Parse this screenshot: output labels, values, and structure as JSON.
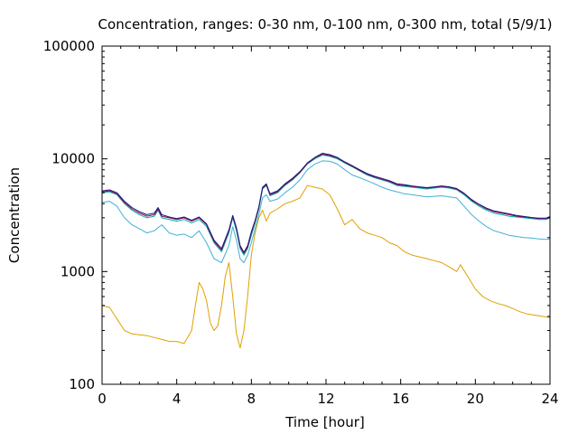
{
  "chart_data": {
    "type": "line",
    "title": "Concentration, ranges: 0-30 nm, 0-100 nm, 0-300 nm, total (5/9/1)",
    "xlabel": "Time [hour]",
    "ylabel": "Concentration",
    "xlim": [
      0,
      24
    ],
    "ylim": [
      100,
      100000
    ],
    "yscale": "log",
    "x_ticks": [
      0,
      4,
      8,
      12,
      16,
      20,
      24
    ],
    "y_ticks": [
      100,
      1000,
      10000,
      100000
    ],
    "grid": false,
    "legend": "none",
    "series": [
      {
        "color": "#e0a000",
        "x": [
          0,
          0.4,
          0.8,
          1.2,
          1.6,
          2.0,
          2.4,
          2.8,
          3.2,
          3.6,
          4.0,
          4.4,
          4.8,
          5.0,
          5.2,
          5.4,
          5.6,
          5.8,
          6.0,
          6.2,
          6.4,
          6.6,
          6.8,
          7.0,
          7.2,
          7.4,
          7.6,
          7.8,
          8.0,
          8.2,
          8.4,
          8.6,
          8.8,
          9.0,
          9.4,
          9.8,
          10.2,
          10.6,
          11.0,
          11.4,
          11.8,
          12.2,
          12.6,
          13.0,
          13.4,
          13.8,
          14.2,
          14.6,
          15.0,
          15.4,
          15.8,
          16.2,
          16.6,
          17.0,
          17.4,
          17.8,
          18.2,
          18.6,
          19.0,
          19.2,
          19.6,
          20.0,
          20.4,
          20.8,
          21.2,
          21.6,
          22.0,
          22.4,
          22.8,
          23.2,
          23.6,
          24.0
        ],
        "y": [
          500,
          480,
          380,
          300,
          280,
          275,
          270,
          260,
          250,
          240,
          240,
          230,
          300,
          500,
          800,
          700,
          550,
          350,
          300,
          330,
          500,
          900,
          1200,
          600,
          280,
          210,
          300,
          600,
          1400,
          2200,
          3000,
          3500,
          2800,
          3300,
          3600,
          4000,
          4200,
          4500,
          5800,
          5600,
          5400,
          4800,
          3600,
          2600,
          2900,
          2400,
          2200,
          2100,
          2000,
          1800,
          1700,
          1500,
          1400,
          1350,
          1300,
          1250,
          1200,
          1100,
          1000,
          1150,
          900,
          700,
          600,
          550,
          520,
          500,
          470,
          440,
          420,
          410,
          400,
          390
        ]
      },
      {
        "color": "#40b0d8",
        "x": [
          0,
          0.4,
          0.8,
          1.2,
          1.6,
          2.0,
          2.4,
          2.8,
          3.2,
          3.6,
          4.0,
          4.4,
          4.8,
          5.2,
          5.6,
          6.0,
          6.4,
          6.8,
          7.0,
          7.2,
          7.4,
          7.6,
          7.8,
          8.0,
          8.2,
          8.4,
          8.6,
          8.8,
          9.0,
          9.4,
          9.8,
          10.2,
          10.6,
          11.0,
          11.4,
          11.8,
          12.2,
          12.6,
          13.0,
          13.4,
          13.8,
          14.2,
          14.6,
          15.0,
          15.4,
          15.8,
          16.2,
          16.6,
          17.0,
          17.4,
          17.8,
          18.2,
          18.6,
          19.0,
          19.4,
          19.8,
          20.2,
          20.6,
          21.0,
          21.4,
          21.8,
          22.2,
          22.6,
          23.0,
          23.4,
          23.8,
          24.0
        ],
        "y": [
          4100,
          4200,
          3800,
          3000,
          2600,
          2400,
          2200,
          2300,
          2600,
          2200,
          2100,
          2150,
          2000,
          2300,
          1800,
          1300,
          1200,
          1700,
          2500,
          1900,
          1300,
          1200,
          1400,
          1800,
          2400,
          3200,
          4500,
          4800,
          4200,
          4400,
          5000,
          5600,
          6500,
          8000,
          9000,
          9600,
          9500,
          9000,
          8000,
          7200,
          6800,
          6400,
          6000,
          5600,
          5300,
          5100,
          4900,
          4800,
          4700,
          4600,
          4650,
          4700,
          4600,
          4500,
          3800,
          3200,
          2800,
          2500,
          2300,
          2200,
          2100,
          2050,
          2000,
          1980,
          1950,
          1930,
          1950
        ]
      },
      {
        "color": "#00b0a0",
        "x": [
          0,
          0.4,
          0.8,
          1.2,
          1.6,
          2.0,
          2.4,
          2.8,
          3.0,
          3.2,
          3.6,
          4.0,
          4.4,
          4.8,
          5.2,
          5.6,
          6.0,
          6.4,
          6.8,
          7.0,
          7.2,
          7.4,
          7.6,
          7.8,
          8.0,
          8.2,
          8.4,
          8.6,
          8.8,
          9.0,
          9.4,
          9.8,
          10.2,
          10.6,
          11.0,
          11.4,
          11.8,
          12.2,
          12.6,
          13.0,
          13.4,
          13.8,
          14.2,
          14.6,
          15.0,
          15.4,
          15.8,
          16.2,
          16.6,
          17.0,
          17.4,
          17.8,
          18.2,
          18.6,
          19.0,
          19.4,
          19.8,
          20.2,
          20.6,
          21.0,
          21.4,
          21.8,
          22.2,
          22.6,
          23.0,
          23.4,
          23.8,
          24.0
        ],
        "y": [
          5000,
          5100,
          4800,
          4000,
          3500,
          3200,
          3000,
          3100,
          3500,
          3000,
          2900,
          2800,
          2900,
          2700,
          2900,
          2500,
          1800,
          1500,
          2200,
          3000,
          2300,
          1600,
          1400,
          1600,
          2100,
          2700,
          3600,
          5400,
          5800,
          4700,
          5000,
          5800,
          6500,
          7500,
          9000,
          10000,
          10800,
          10500,
          10000,
          9200,
          8500,
          7800,
          7200,
          6800,
          6500,
          6200,
          5800,
          5700,
          5600,
          5500,
          5400,
          5500,
          5600,
          5500,
          5300,
          4800,
          4200,
          3800,
          3500,
          3300,
          3200,
          3100,
          3050,
          3000,
          2950,
          2900,
          2900,
          3000
        ]
      },
      {
        "color": "#9b0058",
        "x": [
          0,
          0.4,
          0.8,
          1.2,
          1.6,
          2.0,
          2.4,
          2.8,
          3.0,
          3.2,
          3.6,
          4.0,
          4.4,
          4.8,
          5.2,
          5.6,
          6.0,
          6.4,
          6.8,
          7.0,
          7.2,
          7.4,
          7.6,
          7.8,
          8.0,
          8.2,
          8.4,
          8.6,
          8.8,
          9.0,
          9.4,
          9.8,
          10.2,
          10.6,
          11.0,
          11.4,
          11.8,
          12.2,
          12.6,
          13.0,
          13.4,
          13.8,
          14.2,
          14.6,
          15.0,
          15.4,
          15.8,
          16.2,
          16.6,
          17.0,
          17.4,
          17.8,
          18.2,
          18.6,
          19.0,
          19.4,
          19.8,
          20.2,
          20.6,
          21.0,
          21.4,
          21.8,
          22.2,
          22.6,
          23.0,
          23.4,
          23.8,
          24.0
        ],
        "y": [
          5100,
          5200,
          4900,
          4100,
          3600,
          3300,
          3100,
          3200,
          3600,
          3100,
          3000,
          2900,
          3000,
          2800,
          3000,
          2600,
          1850,
          1550,
          2300,
          3100,
          2400,
          1650,
          1450,
          1650,
          2200,
          2800,
          3700,
          5500,
          5900,
          4800,
          5100,
          5900,
          6600,
          7600,
          9100,
          10200,
          11000,
          10700,
          10200,
          9300,
          8600,
          7900,
          7300,
          6900,
          6600,
          6300,
          5900,
          5800,
          5700,
          5600,
          5500,
          5600,
          5700,
          5600,
          5400,
          4900,
          4300,
          3900,
          3600,
          3400,
          3300,
          3200,
          3100,
          3050,
          3000,
          2950,
          2950,
          3050
        ]
      },
      {
        "color": "#1a1a80",
        "x": [
          0,
          0.4,
          0.8,
          1.2,
          1.6,
          2.0,
          2.4,
          2.8,
          3.0,
          3.2,
          3.6,
          4.0,
          4.4,
          4.8,
          5.2,
          5.6,
          6.0,
          6.4,
          6.8,
          7.0,
          7.2,
          7.4,
          7.6,
          7.8,
          8.0,
          8.2,
          8.4,
          8.6,
          8.8,
          9.0,
          9.4,
          9.8,
          10.2,
          10.6,
          11.0,
          11.4,
          11.8,
          12.2,
          12.6,
          13.0,
          13.4,
          13.8,
          14.2,
          14.6,
          15.0,
          15.4,
          15.8,
          16.2,
          16.6,
          17.0,
          17.4,
          17.8,
          18.2,
          18.6,
          19.0,
          19.4,
          19.8,
          20.2,
          20.6,
          21.0,
          21.4,
          21.8,
          22.2,
          22.6,
          23.0,
          23.4,
          23.8,
          24.0
        ],
        "y": [
          5200,
          5300,
          5000,
          4200,
          3700,
          3400,
          3200,
          3300,
          3700,
          3200,
          3050,
          2950,
          3050,
          2850,
          3050,
          2650,
          1900,
          1600,
          2350,
          3150,
          2450,
          1700,
          1480,
          1700,
          2250,
          2850,
          3750,
          5600,
          6000,
          4900,
          5200,
          6000,
          6700,
          7700,
          9200,
          10300,
          11200,
          10900,
          10300,
          9400,
          8700,
          8000,
          7400,
          7000,
          6700,
          6400,
          6000,
          5900,
          5750,
          5650,
          5550,
          5650,
          5750,
          5650,
          5450,
          4950,
          4350,
          3950,
          3650,
          3450,
          3350,
          3250,
          3150,
          3080,
          3020,
          2980,
          2980,
          3080
        ]
      }
    ]
  }
}
